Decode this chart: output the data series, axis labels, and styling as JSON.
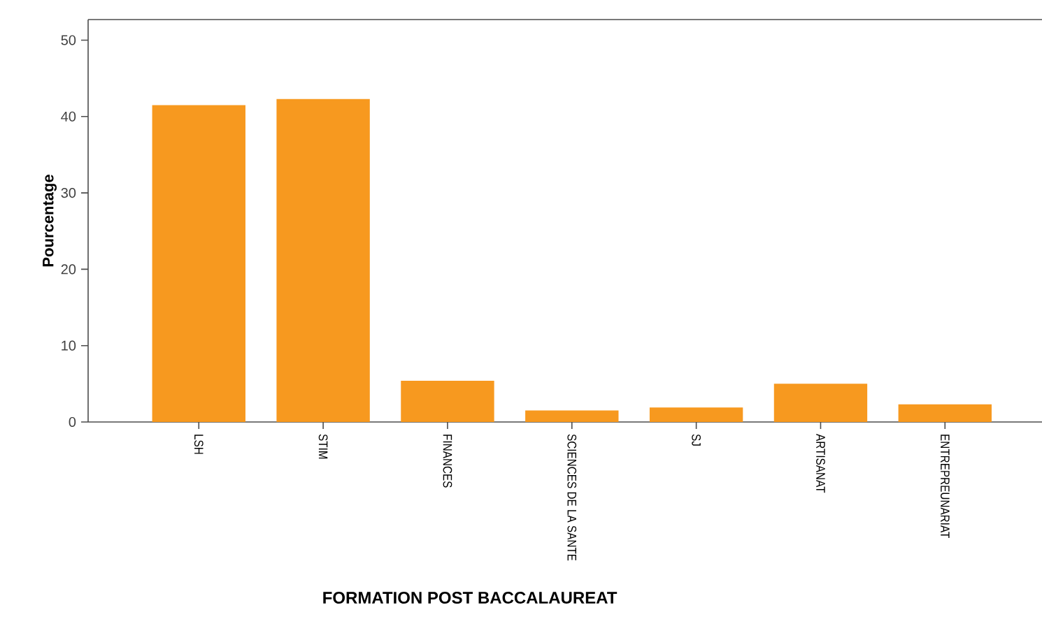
{
  "chart_data": {
    "type": "bar",
    "xlabel": "FORMATION POST BACCALAUREAT",
    "ylabel": "Pourcentage",
    "categories": [
      "LSH",
      "STIM",
      "FINANCES",
      "SCIENCES DE LA SANTE",
      "SJ",
      "ARTISANAT",
      "ENTREPREUNARIAT"
    ],
    "values": [
      41.5,
      42.3,
      5.4,
      1.5,
      1.9,
      5.0,
      2.3
    ],
    "color": "#f7991f",
    "ylim": [
      0,
      52.7
    ],
    "yticks": [
      0,
      10,
      20,
      30,
      40,
      50
    ],
    "grid": false
  }
}
